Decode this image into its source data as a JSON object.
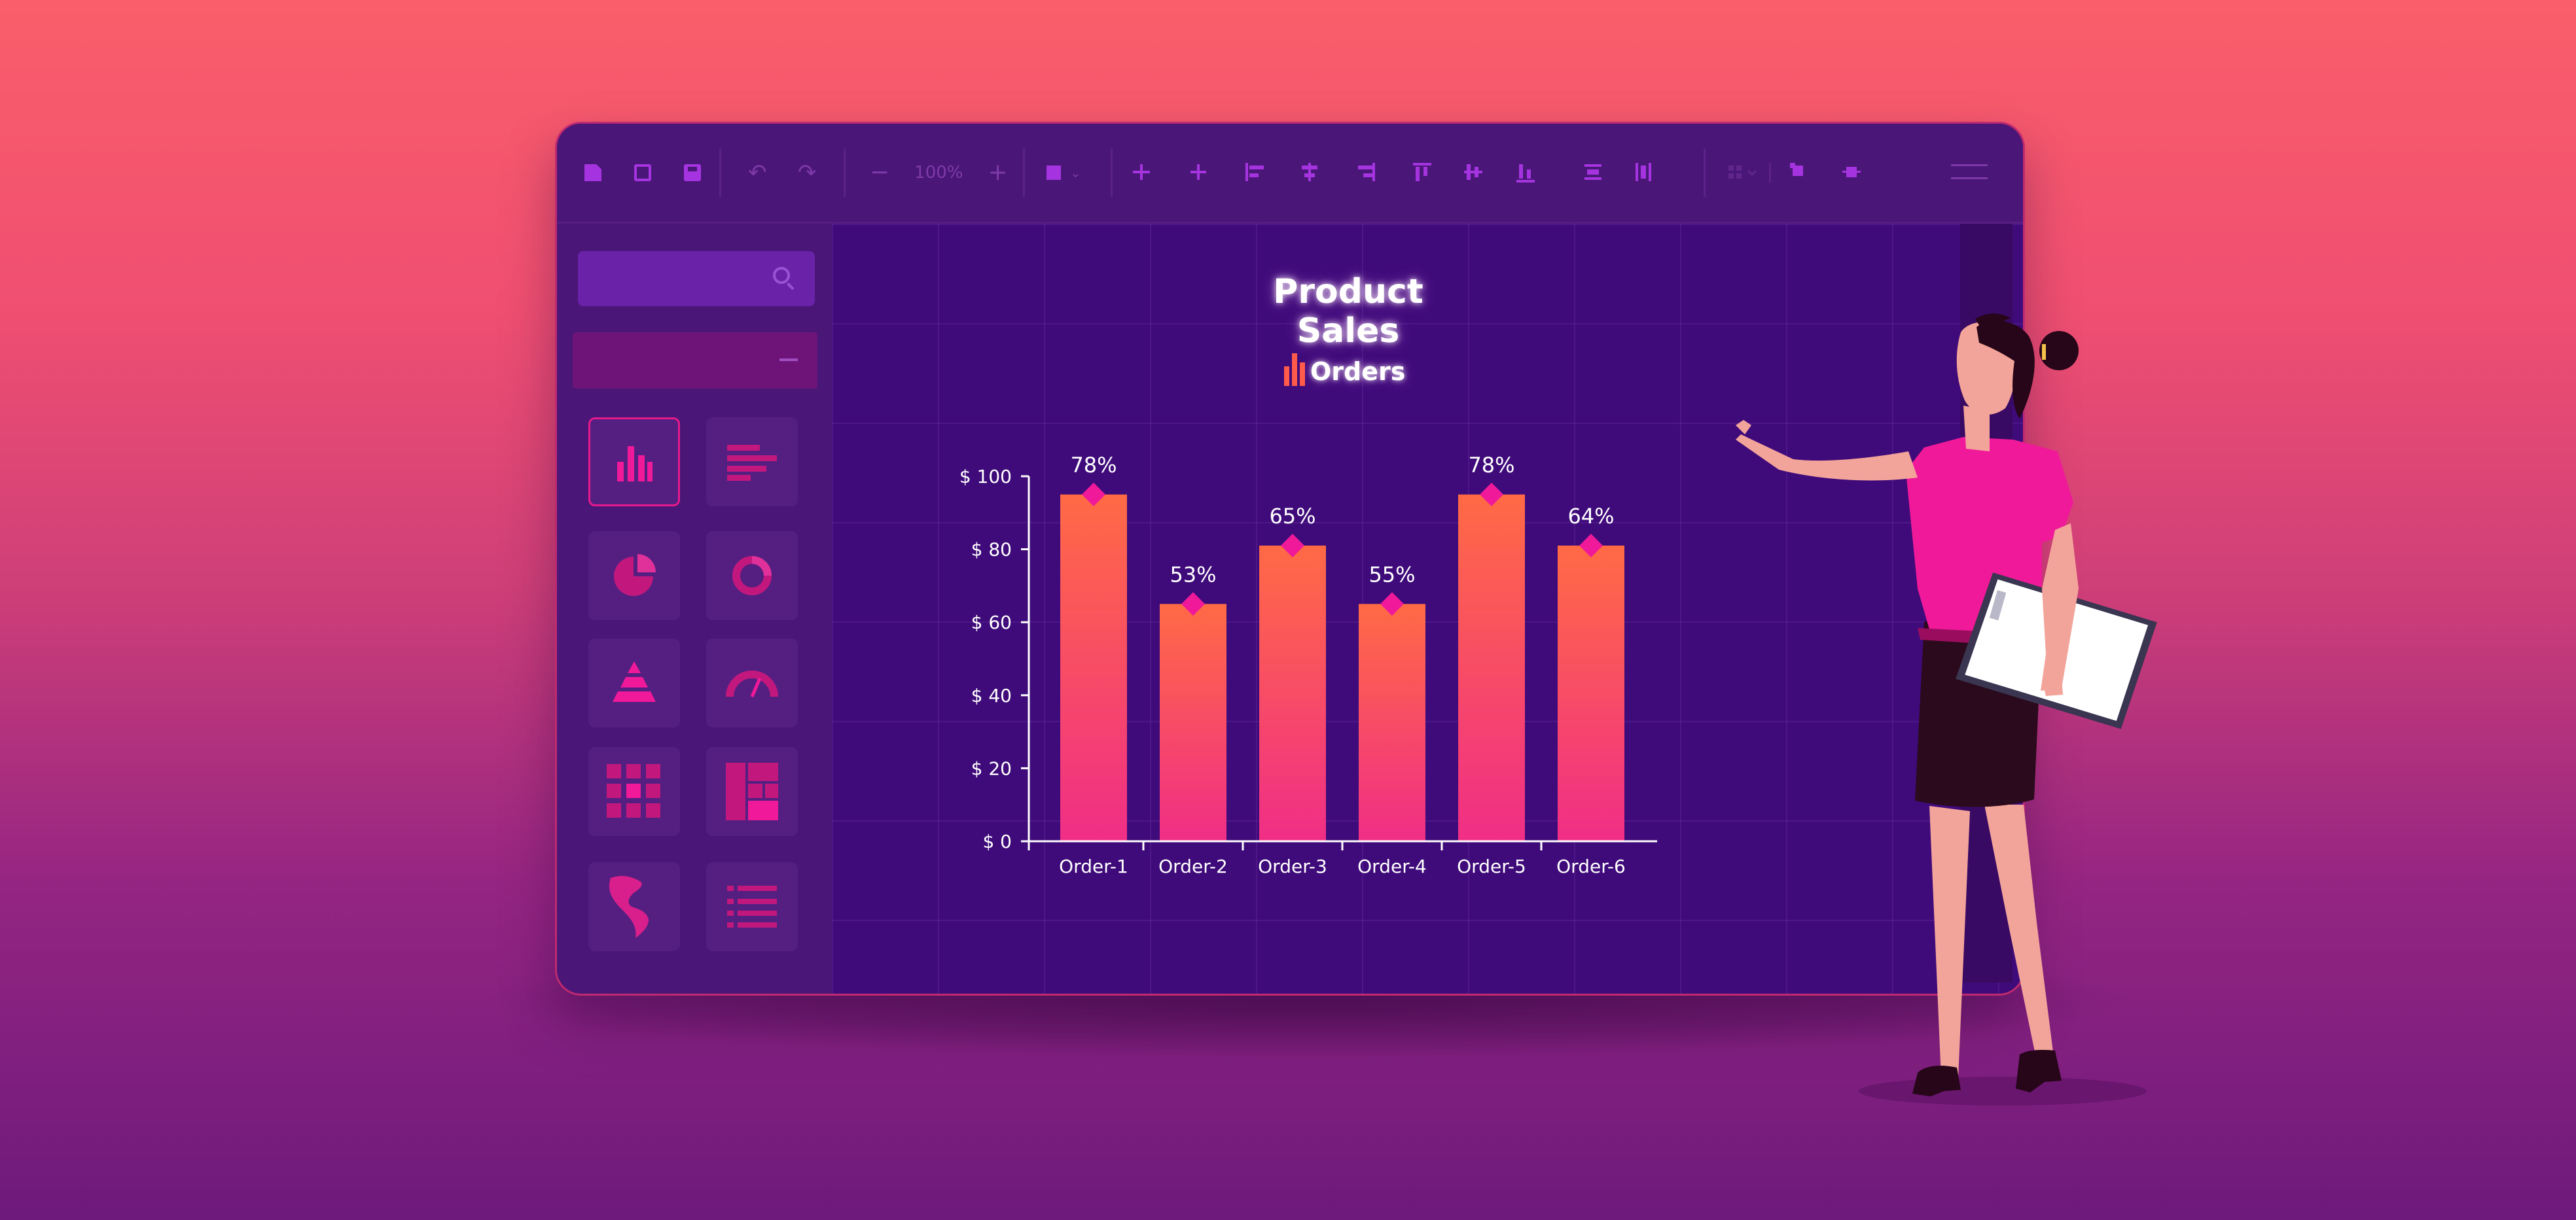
{
  "toolbar": {
    "zoom": "100%",
    "zoom_minus": "−",
    "zoom_plus": "+",
    "undo": "↶",
    "redo": "↷"
  },
  "colors": {
    "bar_top": "#ff6a45",
    "bar_bottom": "#f02e86",
    "marker": "#f0199a",
    "axis": "#ffffff"
  },
  "chart_data": {
    "type": "bar",
    "title": "Product Sales",
    "legend": [
      "Orders"
    ],
    "categories": [
      "Order-1",
      "Order-2",
      "Order-3",
      "Order-4",
      "Order-5",
      "Order-6"
    ],
    "series": [
      {
        "name": "Orders",
        "values": [
          95,
          65,
          81,
          65,
          95,
          81
        ]
      }
    ],
    "data_labels": [
      "78%",
      "53%",
      "65%",
      "55%",
      "78%",
      "64%"
    ],
    "y_ticks": [
      0,
      20,
      40,
      60,
      80,
      100
    ],
    "y_tick_labels": [
      "$ 0",
      "$ 20",
      "$ 40",
      "$ 60",
      "$ 80",
      "$ 100"
    ],
    "ylim": [
      0,
      100
    ],
    "xlabel": "",
    "ylabel": "",
    "legend_position": "top"
  }
}
